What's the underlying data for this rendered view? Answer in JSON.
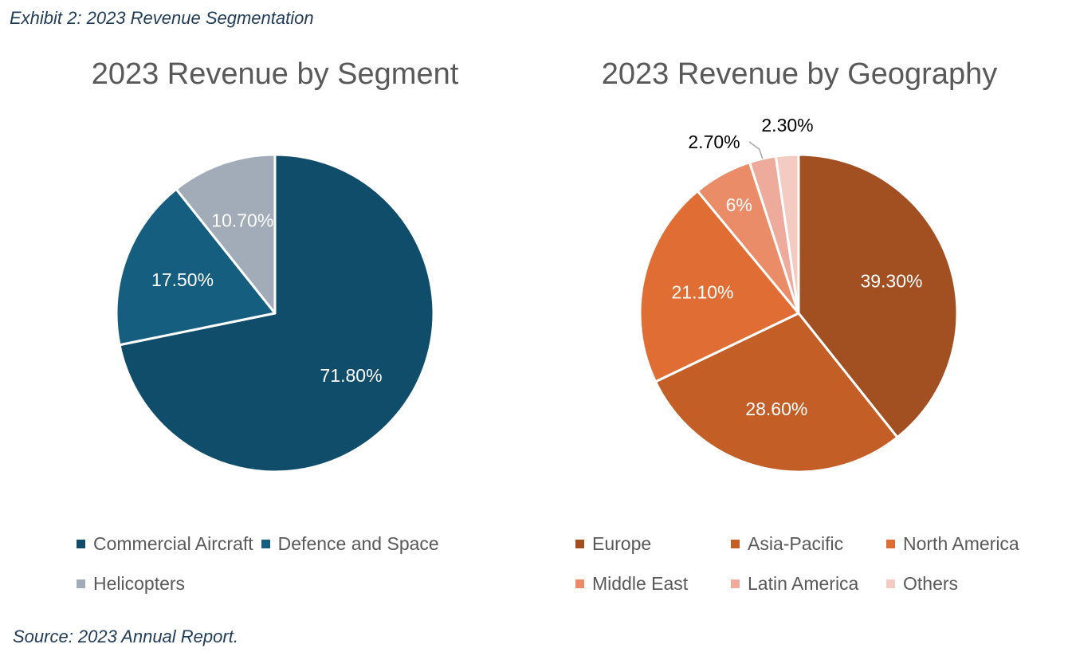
{
  "exhibit_title": "Exhibit 2: 2023 Revenue Segmentation",
  "source": "Source: 2023 Annual Report.",
  "chart_data": [
    {
      "type": "pie",
      "title": "2023 Revenue by Segment",
      "slices": [
        {
          "name": "Commercial Aircraft",
          "value": 71.8,
          "label": "71.80%",
          "color": "#0f4d6b",
          "label_color": "#ffffff"
        },
        {
          "name": "Defence and Space",
          "value": 17.5,
          "label": "17.50%",
          "color": "#155e80",
          "label_color": "#ffffff"
        },
        {
          "name": "Helicopters",
          "value": 10.7,
          "label": "10.70%",
          "color": "#a2acb8",
          "label_color": "#ffffff"
        }
      ],
      "legend_position": "bottom",
      "start": "12 o'clock",
      "direction": "clockwise"
    },
    {
      "type": "pie",
      "title": "2023 Revenue by Geography",
      "slices": [
        {
          "name": "Europe",
          "value": 39.3,
          "label": "39.30%",
          "color": "#a24f22",
          "label_color": "#ffffff"
        },
        {
          "name": "Asia-Pacific",
          "value": 28.6,
          "label": "28.60%",
          "color": "#c45e27",
          "label_color": "#ffffff"
        },
        {
          "name": "North America",
          "value": 21.1,
          "label": "21.10%",
          "color": "#e06d33",
          "label_color": "#ffffff"
        },
        {
          "name": "Middle East",
          "value": 6,
          "label": "6%",
          "color": "#ea8c67",
          "label_color": "#ffffff"
        },
        {
          "name": "Latin America",
          "value": 2.7,
          "label": "2.70%",
          "color": "#eeaa9a",
          "label_color": "#000000"
        },
        {
          "name": "Others",
          "value": 2.3,
          "label": "2.30%",
          "color": "#f3cbc3",
          "label_color": "#000000"
        }
      ],
      "legend_position": "bottom",
      "start": "12 o'clock",
      "direction": "clockwise"
    }
  ]
}
